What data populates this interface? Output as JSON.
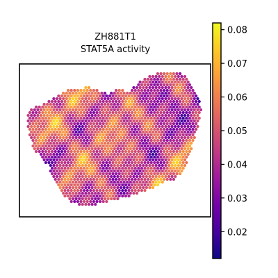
{
  "chart_data": {
    "type": "heatmap",
    "title": "ZH881T1",
    "subtitle": "STAT5A activity",
    "xlabel": "",
    "ylabel": "",
    "colormap": "plasma",
    "colorbar": {
      "range": [
        0.012,
        0.082
      ],
      "ticks": [
        0.02,
        0.03,
        0.04,
        0.05,
        0.06,
        0.07,
        0.08
      ],
      "tick_labels": [
        "0.02",
        "0.03",
        "0.04",
        "0.05",
        "0.06",
        "0.07",
        "0.08"
      ]
    },
    "value_summary": {
      "min": 0.012,
      "max": 0.082
    },
    "grid": false,
    "axes_ticks": false,
    "legend": "colorbar-right"
  },
  "colors": {
    "frame": "#000000",
    "colormap_stops": [
      "#0d0887",
      "#46039f",
      "#7201a8",
      "#9c179e",
      "#bd3786",
      "#d8576b",
      "#ed7953",
      "#fb9f3a",
      "#fdca26",
      "#f0f921"
    ]
  }
}
